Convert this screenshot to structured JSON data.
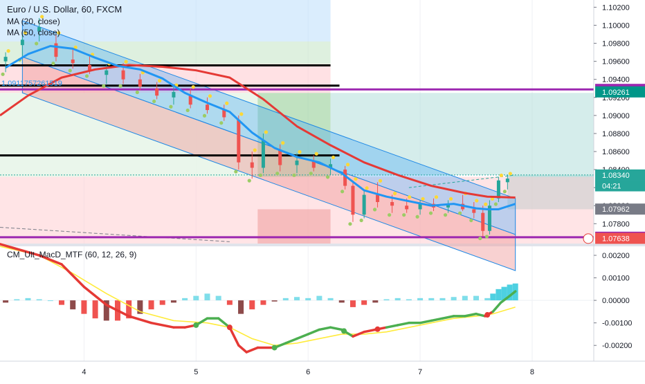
{
  "chart_data": [
    {
      "type": "candlestick",
      "title": "Euro / U.S. Dollar, 60, FXCM",
      "legend": [
        "MA (20, close)",
        "MA (50, close)"
      ],
      "trendline_value_label": "1.0911757261519",
      "y_ticks": [
        "1.10200",
        "1.10000",
        "1.09800",
        "1.09600",
        "1.09400",
        "1.09200",
        "1.09000",
        "1.08800",
        "1.08600",
        "1.08400",
        "1.08200",
        "1.08000",
        "1.07800",
        "1.07600"
      ],
      "ylim": [
        1.0758,
        1.1028
      ],
      "x_ticks": [
        "4",
        "5",
        "6",
        "7",
        "8"
      ],
      "x_tick_values": [
        4,
        5,
        6,
        7,
        8
      ],
      "xlim": [
        3.25,
        8.55
      ],
      "price_tags": [
        {
          "label": "1.09289",
          "value": 1.09289,
          "color": "#9c27b0"
        },
        {
          "label": "1.09261",
          "value": 1.09261,
          "color": "#009688"
        },
        {
          "label": "1.08340",
          "value": 1.0834,
          "color": "#26a69a"
        },
        {
          "label": "04:21",
          "value": 1.0822,
          "color": "#26a69a"
        },
        {
          "label": "1.07962",
          "value": 1.07962,
          "color": "#787b86"
        },
        {
          "label": "1.07650",
          "value": 1.0765,
          "color": "#9c27b0"
        },
        {
          "label": "1.07638",
          "value": 1.07638,
          "color": "#ef5350"
        }
      ],
      "horizontal_lines": [
        {
          "value": 1.09289,
          "color": "#9c27b0",
          "x_start": 3.25,
          "x_end": 8.55
        },
        {
          "value": 1.0765,
          "color": "#9c27b0",
          "x_start": 3.25,
          "x_end": 8.55
        },
        {
          "value": 1.09555,
          "color": "#000000",
          "x_start": 3.25,
          "x_end": 6.2
        },
        {
          "value": 1.09331,
          "color": "#000000",
          "x_start": 3.25,
          "x_end": 6.28
        },
        {
          "value": 1.08557,
          "color": "#000000",
          "x_start": 3.25,
          "x_end": 6.28
        }
      ],
      "ma20": {
        "x": [
          3.3,
          3.5,
          3.7,
          3.9,
          4.1,
          4.3,
          4.5,
          4.7,
          4.9,
          5.1,
          5.3,
          5.5,
          5.7,
          5.9,
          6.1,
          6.3,
          6.5,
          6.7,
          6.9,
          7.1,
          7.3,
          7.5,
          7.6,
          7.7,
          7.85
        ],
        "y": [
          1.0953,
          1.0968,
          1.0977,
          1.0974,
          1.0964,
          1.0955,
          1.0951,
          1.0941,
          1.0925,
          1.0914,
          1.0904,
          1.0881,
          1.0864,
          1.0854,
          1.0848,
          1.0836,
          1.0817,
          1.081,
          1.0805,
          1.08,
          1.0802,
          1.0797,
          1.0796,
          1.0796,
          1.0802
        ],
        "color": "#2196f3"
      },
      "ma50": {
        "x": [
          3.25,
          3.5,
          3.8,
          4.1,
          4.4,
          4.7,
          5.0,
          5.3,
          5.6,
          5.9,
          6.2,
          6.5,
          6.8,
          7.1,
          7.4,
          7.6,
          7.85
        ],
        "y": [
          1.09,
          1.0922,
          1.0942,
          1.0951,
          1.0956,
          1.0954,
          1.095,
          1.0942,
          1.0918,
          1.0888,
          1.0867,
          1.0848,
          1.0834,
          1.0822,
          1.0814,
          1.081,
          1.0809
        ],
        "color": "#e53935"
      },
      "candles": [
        {
          "x": 3.3,
          "o": 1.096,
          "h": 1.097,
          "l": 1.0948,
          "c": 1.0965
        },
        {
          "x": 3.45,
          "o": 1.0978,
          "h": 1.099,
          "l": 1.0964,
          "c": 1.0984
        },
        {
          "x": 3.6,
          "o": 1.0993,
          "h": 1.1008,
          "l": 1.0982,
          "c": 1.0998
        },
        {
          "x": 3.75,
          "o": 1.098,
          "h": 1.099,
          "l": 1.096,
          "c": 1.0965
        },
        {
          "x": 3.9,
          "o": 1.0962,
          "h": 1.0974,
          "l": 1.0952,
          "c": 1.0958
        },
        {
          "x": 4.05,
          "o": 1.0956,
          "h": 1.0966,
          "l": 1.0946,
          "c": 1.095
        },
        {
          "x": 4.2,
          "o": 1.0945,
          "h": 1.0956,
          "l": 1.0935,
          "c": 1.095
        },
        {
          "x": 4.35,
          "o": 1.095,
          "h": 1.0958,
          "l": 1.0935,
          "c": 1.094
        },
        {
          "x": 4.5,
          "o": 1.094,
          "h": 1.0946,
          "l": 1.0928,
          "c": 1.0932
        },
        {
          "x": 4.65,
          "o": 1.093,
          "h": 1.0937,
          "l": 1.0918,
          "c": 1.0922
        },
        {
          "x": 4.8,
          "o": 1.092,
          "h": 1.0932,
          "l": 1.0912,
          "c": 1.0926
        },
        {
          "x": 4.95,
          "o": 1.0922,
          "h": 1.093,
          "l": 1.0908,
          "c": 1.0912
        },
        {
          "x": 5.1,
          "o": 1.0912,
          "h": 1.092,
          "l": 1.0902,
          "c": 1.0906
        },
        {
          "x": 5.25,
          "o": 1.0906,
          "h": 1.0912,
          "l": 1.0894,
          "c": 1.0898
        },
        {
          "x": 5.38,
          "o": 1.0895,
          "h": 1.09,
          "l": 1.084,
          "c": 1.0848
        },
        {
          "x": 5.5,
          "o": 1.0848,
          "h": 1.086,
          "l": 1.083,
          "c": 1.0842
        },
        {
          "x": 5.6,
          "o": 1.0842,
          "h": 1.088,
          "l": 1.0836,
          "c": 1.0872
        },
        {
          "x": 5.75,
          "o": 1.0862,
          "h": 1.0868,
          "l": 1.0838,
          "c": 1.0845
        },
        {
          "x": 5.9,
          "o": 1.0845,
          "h": 1.0858,
          "l": 1.0836,
          "c": 1.085
        },
        {
          "x": 6.05,
          "o": 1.085,
          "h": 1.0856,
          "l": 1.0838,
          "c": 1.0842
        },
        {
          "x": 6.2,
          "o": 1.0842,
          "h": 1.0852,
          "l": 1.0834,
          "c": 1.0846
        },
        {
          "x": 6.33,
          "o": 1.084,
          "h": 1.0844,
          "l": 1.0818,
          "c": 1.0822
        },
        {
          "x": 6.4,
          "o": 1.0822,
          "h": 1.0828,
          "l": 1.0782,
          "c": 1.079
        },
        {
          "x": 6.5,
          "o": 1.079,
          "h": 1.0818,
          "l": 1.0786,
          "c": 1.0812
        },
        {
          "x": 6.62,
          "o": 1.0812,
          "h": 1.0826,
          "l": 1.0798,
          "c": 1.0804
        },
        {
          "x": 6.75,
          "o": 1.0804,
          "h": 1.0812,
          "l": 1.0792,
          "c": 1.08
        },
        {
          "x": 6.88,
          "o": 1.08,
          "h": 1.0808,
          "l": 1.0792,
          "c": 1.0796
        },
        {
          "x": 7.0,
          "o": 1.0796,
          "h": 1.0806,
          "l": 1.079,
          "c": 1.0802
        },
        {
          "x": 7.12,
          "o": 1.0802,
          "h": 1.0808,
          "l": 1.0794,
          "c": 1.0798
        },
        {
          "x": 7.25,
          "o": 1.0798,
          "h": 1.0806,
          "l": 1.0792,
          "c": 1.0802
        },
        {
          "x": 7.38,
          "o": 1.0802,
          "h": 1.0812,
          "l": 1.0794,
          "c": 1.0796
        },
        {
          "x": 7.48,
          "o": 1.0796,
          "h": 1.0804,
          "l": 1.0786,
          "c": 1.0792
        },
        {
          "x": 7.56,
          "o": 1.0792,
          "h": 1.08,
          "l": 1.0766,
          "c": 1.0772
        },
        {
          "x": 7.62,
          "o": 1.0772,
          "h": 1.0806,
          "l": 1.0768,
          "c": 1.08
        },
        {
          "x": 7.7,
          "o": 1.0808,
          "h": 1.0832,
          "l": 1.0804,
          "c": 1.0828
        },
        {
          "x": 7.78,
          "o": 1.0826,
          "h": 1.0834,
          "l": 1.0818,
          "c": 1.083
        }
      ]
    },
    {
      "type": "indicator",
      "title": "CM_Ult_MacD_MTF (60, 12, 26, 9)",
      "y_ticks": [
        "0.00200",
        "0.00100",
        "0.00000",
        "-0.00100",
        "-0.00200"
      ],
      "y_tick_values": [
        0.002,
        0.001,
        0.0,
        -0.001,
        -0.002
      ],
      "ylim": [
        -0.0027,
        0.0024
      ],
      "macd_line": {
        "x": [
          3.25,
          3.6,
          3.8,
          4.0,
          4.2,
          4.4,
          4.6,
          4.8,
          4.9,
          5.0,
          5.1,
          5.2,
          5.3,
          5.38,
          5.45,
          5.55,
          5.7,
          5.8,
          5.9,
          6.0,
          6.1,
          6.2,
          6.3,
          6.4,
          6.5,
          6.6,
          6.7,
          6.8,
          6.9,
          7.0,
          7.1,
          7.2,
          7.3,
          7.4,
          7.5,
          7.58,
          7.65,
          7.72,
          7.8,
          7.85
        ],
        "y": [
          0.0025,
          0.002,
          0.0016,
          0.0006,
          -0.0002,
          -0.0007,
          -0.001,
          -0.0012,
          -0.0012,
          -0.0011,
          -0.0008,
          -0.0008,
          -0.0012,
          -0.002,
          -0.0023,
          -0.0021,
          -0.0021,
          -0.0019,
          -0.0017,
          -0.0015,
          -0.0013,
          -0.0012,
          -0.0013,
          -0.0016,
          -0.0014,
          -0.0013,
          -0.0012,
          -0.0011,
          -0.001,
          -0.001,
          -0.0009,
          -0.0008,
          -0.0007,
          -0.0007,
          -0.0006,
          -0.0007,
          -0.0005,
          -0.0001,
          0.0002,
          0.0004
        ]
      },
      "signal_line": {
        "x": [
          3.25,
          3.6,
          3.9,
          4.2,
          4.5,
          4.8,
          5.1,
          5.3,
          5.5,
          5.7,
          5.9,
          6.1,
          6.3,
          6.5,
          6.7,
          6.9,
          7.1,
          7.3,
          7.5,
          7.65,
          7.85
        ],
        "y": [
          0.0024,
          0.002,
          0.0012,
          0.0003,
          -0.0005,
          -0.0009,
          -0.001,
          -0.0012,
          -0.0017,
          -0.002,
          -0.0019,
          -0.0017,
          -0.0015,
          -0.0015,
          -0.0014,
          -0.0012,
          -0.001,
          -0.0008,
          -0.0007,
          -0.0006,
          -0.0003
        ]
      },
      "crosses": [
        5.0,
        5.3,
        5.7,
        6.32,
        6.62,
        7.6
      ],
      "histogram": {
        "x": [
          3.3,
          3.4,
          3.5,
          3.6,
          3.7,
          3.8,
          3.9,
          4.0,
          4.1,
          4.2,
          4.3,
          4.4,
          4.5,
          4.6,
          4.7,
          4.8,
          4.9,
          5.0,
          5.1,
          5.2,
          5.3,
          5.4,
          5.5,
          5.6,
          5.7,
          5.8,
          5.9,
          6.0,
          6.1,
          6.2,
          6.3,
          6.4,
          6.5,
          6.6,
          6.7,
          6.8,
          6.9,
          7.0,
          7.1,
          7.2,
          7.3,
          7.4,
          7.5,
          7.6,
          7.65,
          7.7,
          7.75,
          7.8,
          7.85
        ],
        "y": [
          -0.0001,
          5e-05,
          0.0001,
          5e-05,
          0.0,
          -0.0002,
          -0.0004,
          -0.0006,
          -0.0008,
          -0.0009,
          -0.0009,
          -0.0008,
          -0.0006,
          -0.0004,
          -0.0002,
          -0.0001,
          0.0001,
          0.0002,
          0.0003,
          0.0002,
          -0.0002,
          -0.0006,
          -0.0004,
          -0.0002,
          -5e-05,
          0.0001,
          0.00015,
          0.0001,
          0.0002,
          0.0001,
          -0.0001,
          -0.0003,
          -0.0002,
          -0.0001,
          5e-05,
          0.0001,
          5e-05,
          0.0001,
          0.0001,
          0.0001,
          0.00015,
          0.0002,
          0.0002,
          0.0001,
          0.0003,
          0.0005,
          0.0006,
          0.0007,
          0.00075
        ]
      },
      "x_ticks": [
        "4",
        "5",
        "6",
        "7",
        "8"
      ],
      "x_tick_values": [
        4,
        5,
        6,
        7,
        8
      ],
      "xlim": [
        3.25,
        8.55
      ]
    }
  ]
}
